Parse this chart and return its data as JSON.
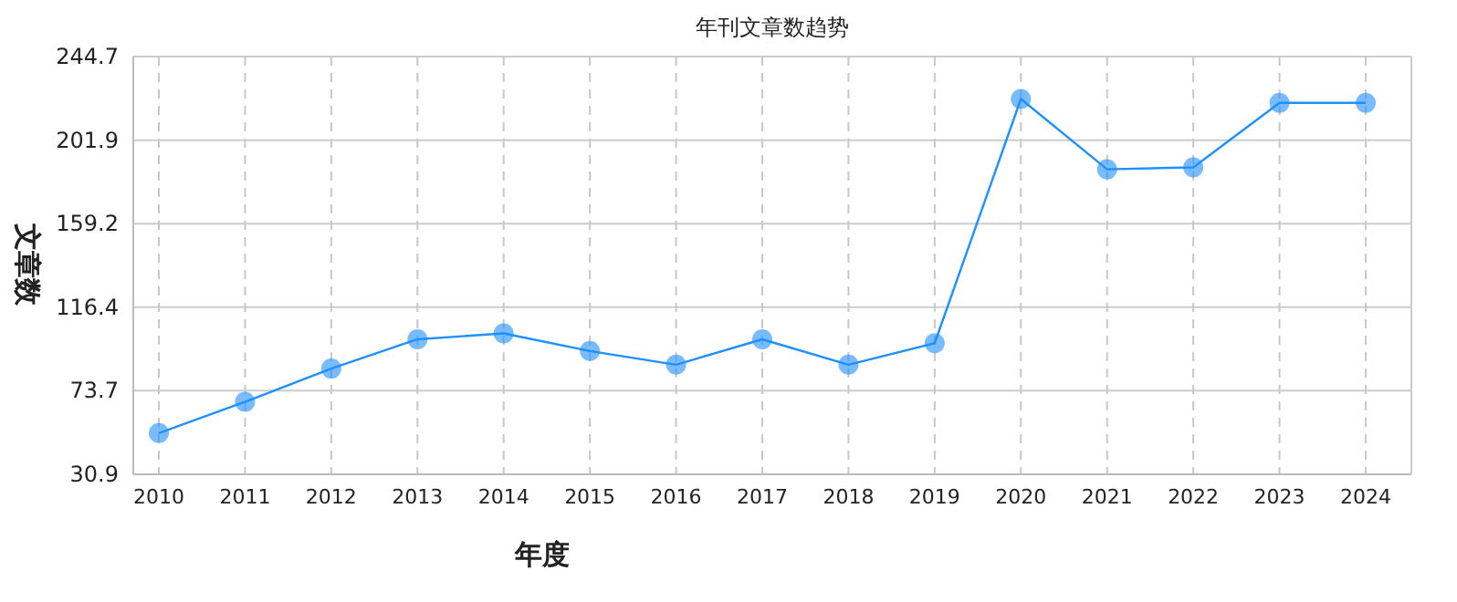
{
  "chart_data": {
    "type": "line",
    "title": "年刊文章数趋势",
    "xlabel": "年度",
    "ylabel": "文章数",
    "categories": [
      "2010",
      "2011",
      "2012",
      "2013",
      "2014",
      "2015",
      "2016",
      "2017",
      "2018",
      "2019",
      "2020",
      "2021",
      "2022",
      "2023",
      "2024"
    ],
    "series": [
      {
        "color": "#1e90ff",
        "values": [
          52,
          68,
          85,
          100,
          103,
          94,
          87,
          100,
          87,
          98,
          223,
          187,
          188,
          221,
          221
        ]
      }
    ],
    "ylim": [
      30.9,
      244.7
    ],
    "yticks": [
      30.9,
      73.7,
      116.4,
      159.2,
      201.9,
      244.7
    ],
    "grid": true,
    "marker": "circle",
    "line_style": "solid"
  }
}
